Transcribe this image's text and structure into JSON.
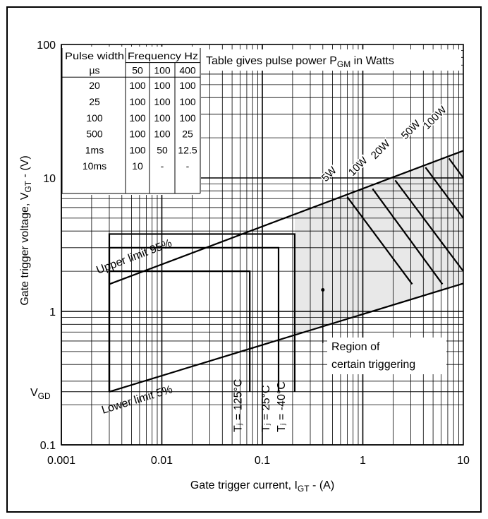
{
  "colors": {
    "region_fill": "#e8e8e8",
    "line": "#000000",
    "background": "#ffffff"
  },
  "chart_data": {
    "type": "line",
    "xscale": "log",
    "yscale": "log",
    "xlim": [
      0.001,
      10
    ],
    "ylim": [
      0.1,
      100
    ],
    "grid": true,
    "xlabel": {
      "main": "Gate trigger current, I",
      "sub": "GT",
      "unit": " - (A)"
    },
    "ylabel": {
      "main": "Gate trigger voltage, V",
      "sub": "GT",
      "unit": " - (V)"
    },
    "x_ticks": [
      {
        "value": 0.001,
        "label": "0.001"
      },
      {
        "value": 0.01,
        "label": "0.01"
      },
      {
        "value": 0.1,
        "label": "0.1"
      },
      {
        "value": 1,
        "label": "1"
      },
      {
        "value": 10,
        "label": "10"
      }
    ],
    "y_ticks": [
      {
        "value": 0.1,
        "label": "0.1"
      },
      {
        "value": 1,
        "label": "1"
      },
      {
        "value": 10,
        "label": "10"
      },
      {
        "value": 100,
        "label": "100"
      }
    ],
    "vgd": {
      "value": 0.25,
      "main": "V",
      "sub": "GD"
    },
    "series": [
      {
        "name": "Upper limit 95%",
        "x": [
          0.003,
          10
        ],
        "y": [
          1.6,
          16
        ]
      },
      {
        "name": "Lower limit 5%",
        "x": [
          0.003,
          10
        ],
        "y": [
          0.25,
          1.62
        ]
      }
    ],
    "temperature_boxes": [
      {
        "label": "Tⱼ = 125°C",
        "x": [
          0.003,
          0.075
        ],
        "y": [
          0.25,
          2.0
        ],
        "label_x": 0.062
      },
      {
        "label": "Tⱼ = 25°C",
        "x": [
          0.003,
          0.145
        ],
        "y": [
          0.25,
          3.0
        ],
        "label_x": 0.118
      },
      {
        "label": "Tⱼ = -40°C",
        "x": [
          0.003,
          0.21
        ],
        "y": [
          0.25,
          3.8
        ],
        "label_x": 0.168
      }
    ],
    "power_lines": [
      {
        "label": "5W",
        "x": [
          0.7,
          3.1
        ],
        "y": [
          7.2,
          1.6
        ]
      },
      {
        "label": "10W",
        "x": [
          1.25,
          6.2
        ],
        "y": [
          8.3,
          1.6
        ]
      },
      {
        "label": "20W",
        "x": [
          2.1,
          10
        ],
        "y": [
          9.6,
          2.0
        ]
      },
      {
        "label": "50W",
        "x": [
          4.2,
          10
        ],
        "y": [
          12.0,
          5.0
        ]
      },
      {
        "label": "100W",
        "x": [
          7.2,
          10
        ],
        "y": [
          14.0,
          10.0
        ]
      }
    ],
    "region": {
      "label_line1": "Region of",
      "label_line2": "certain triggering",
      "point": [
        0.4,
        1.45
      ]
    },
    "table": {
      "title_pre": "Table gives pulse power P",
      "title_sub": "GM",
      "title_post": " in Watts",
      "col1_header": "Pulse width",
      "col1_unit": "µs",
      "group_header": "Frequency Hz",
      "freq_headers": [
        "50",
        "100",
        "400"
      ],
      "rows": [
        [
          "20",
          "100",
          "100",
          "100"
        ],
        [
          "25",
          "100",
          "100",
          "100"
        ],
        [
          "100",
          "100",
          "100",
          "100"
        ],
        [
          "500",
          "100",
          "100",
          "25"
        ],
        [
          "1ms",
          "100",
          "50",
          "12.5"
        ],
        [
          "10ms",
          "10",
          "-",
          "-"
        ]
      ]
    }
  }
}
